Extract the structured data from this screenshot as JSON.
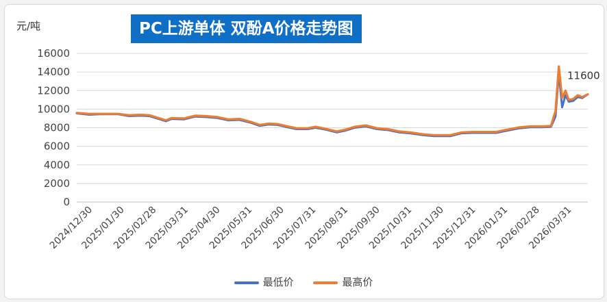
{
  "chart_data": {
    "type": "line",
    "title": "PC上游单体 双酚A价格走势图",
    "ylabel": "元/吨",
    "ylim": [
      0,
      16000
    ],
    "yticks": [
      0,
      2000,
      4000,
      6000,
      8000,
      10000,
      12000,
      14000,
      16000
    ],
    "xlim": [
      "2024-12-30",
      "2026-04-02"
    ],
    "xtick_labels": [
      "2024/12/30",
      "2025/01/30",
      "2025/02/28",
      "2025/03/31",
      "2025/04/30",
      "2025/05/31",
      "2025/06/30",
      "2025/07/31",
      "2025/08/31",
      "2025/09/30",
      "2025/10/31",
      "2025/11/30",
      "2025/12/31",
      "2026/01/31",
      "2026/02/28",
      "2026/03/31"
    ],
    "annotation": {
      "text": "11600",
      "x": "2026-04-02",
      "y": 11600
    },
    "legend_position": "bottom",
    "grid": true,
    "series": [
      {
        "name": "最低价",
        "color": "#4472c4",
        "points": [
          [
            "2024-12-30",
            9550
          ],
          [
            "2025-01-10",
            9400
          ],
          [
            "2025-01-20",
            9450
          ],
          [
            "2025-02-05",
            9450
          ],
          [
            "2025-02-15",
            9250
          ],
          [
            "2025-02-25",
            9300
          ],
          [
            "2025-03-05",
            9250
          ],
          [
            "2025-03-12",
            9000
          ],
          [
            "2025-03-20",
            8700
          ],
          [
            "2025-03-25",
            8950
          ],
          [
            "2025-04-05",
            8900
          ],
          [
            "2025-04-15",
            9200
          ],
          [
            "2025-04-25",
            9150
          ],
          [
            "2025-05-05",
            9050
          ],
          [
            "2025-05-15",
            8800
          ],
          [
            "2025-05-25",
            8850
          ],
          [
            "2025-06-05",
            8500
          ],
          [
            "2025-06-12",
            8200
          ],
          [
            "2025-06-20",
            8350
          ],
          [
            "2025-06-28",
            8300
          ],
          [
            "2025-07-05",
            8100
          ],
          [
            "2025-07-15",
            7850
          ],
          [
            "2025-07-25",
            7850
          ],
          [
            "2025-08-01",
            8000
          ],
          [
            "2025-08-10",
            7800
          ],
          [
            "2025-08-20",
            7500
          ],
          [
            "2025-08-28",
            7700
          ],
          [
            "2025-09-05",
            8000
          ],
          [
            "2025-09-15",
            8150
          ],
          [
            "2025-09-25",
            7850
          ],
          [
            "2025-10-05",
            7750
          ],
          [
            "2025-10-15",
            7500
          ],
          [
            "2025-10-25",
            7400
          ],
          [
            "2025-11-05",
            7200
          ],
          [
            "2025-11-15",
            7100
          ],
          [
            "2025-11-30",
            7100
          ],
          [
            "2025-12-10",
            7400
          ],
          [
            "2025-12-20",
            7450
          ],
          [
            "2025-12-31",
            7450
          ],
          [
            "2026-01-10",
            7450
          ],
          [
            "2026-01-20",
            7700
          ],
          [
            "2026-01-31",
            7950
          ],
          [
            "2026-02-10",
            8050
          ],
          [
            "2026-02-20",
            8050
          ],
          [
            "2026-02-28",
            8100
          ],
          [
            "2026-03-04",
            9200
          ],
          [
            "2026-03-07",
            13900
          ],
          [
            "2026-03-10",
            10200
          ],
          [
            "2026-03-13",
            11500
          ],
          [
            "2026-03-16",
            10800
          ],
          [
            "2026-03-20",
            10900
          ],
          [
            "2026-03-24",
            11300
          ],
          [
            "2026-03-28",
            11200
          ],
          [
            "2026-04-02",
            11600
          ]
        ]
      },
      {
        "name": "最高价",
        "color": "#ed7d31",
        "points": [
          [
            "2024-12-30",
            9600
          ],
          [
            "2025-01-10",
            9500
          ],
          [
            "2025-01-20",
            9500
          ],
          [
            "2025-02-05",
            9500
          ],
          [
            "2025-02-15",
            9350
          ],
          [
            "2025-02-25",
            9400
          ],
          [
            "2025-03-05",
            9350
          ],
          [
            "2025-03-12",
            9100
          ],
          [
            "2025-03-20",
            8800
          ],
          [
            "2025-03-25",
            9050
          ],
          [
            "2025-04-05",
            9000
          ],
          [
            "2025-04-15",
            9300
          ],
          [
            "2025-04-25",
            9250
          ],
          [
            "2025-05-05",
            9150
          ],
          [
            "2025-05-15",
            8900
          ],
          [
            "2025-05-25",
            8950
          ],
          [
            "2025-06-05",
            8600
          ],
          [
            "2025-06-12",
            8300
          ],
          [
            "2025-06-20",
            8450
          ],
          [
            "2025-06-28",
            8400
          ],
          [
            "2025-07-05",
            8200
          ],
          [
            "2025-07-15",
            7950
          ],
          [
            "2025-07-25",
            7950
          ],
          [
            "2025-08-01",
            8100
          ],
          [
            "2025-08-10",
            7900
          ],
          [
            "2025-08-20",
            7600
          ],
          [
            "2025-08-28",
            7800
          ],
          [
            "2025-09-05",
            8100
          ],
          [
            "2025-09-15",
            8250
          ],
          [
            "2025-09-25",
            7950
          ],
          [
            "2025-10-05",
            7850
          ],
          [
            "2025-10-15",
            7600
          ],
          [
            "2025-10-25",
            7500
          ],
          [
            "2025-11-05",
            7300
          ],
          [
            "2025-11-15",
            7200
          ],
          [
            "2025-11-30",
            7200
          ],
          [
            "2025-12-10",
            7500
          ],
          [
            "2025-12-20",
            7550
          ],
          [
            "2025-12-31",
            7550
          ],
          [
            "2026-01-10",
            7550
          ],
          [
            "2026-01-20",
            7800
          ],
          [
            "2026-01-31",
            8050
          ],
          [
            "2026-02-10",
            8150
          ],
          [
            "2026-02-20",
            8150
          ],
          [
            "2026-02-28",
            8200
          ],
          [
            "2026-03-04",
            9800
          ],
          [
            "2026-03-07",
            14600
          ],
          [
            "2026-03-10",
            11200
          ],
          [
            "2026-03-13",
            12000
          ],
          [
            "2026-03-16",
            11000
          ],
          [
            "2026-03-20",
            11100
          ],
          [
            "2026-03-24",
            11500
          ],
          [
            "2026-03-28",
            11300
          ],
          [
            "2026-04-02",
            11600
          ]
        ]
      }
    ]
  }
}
